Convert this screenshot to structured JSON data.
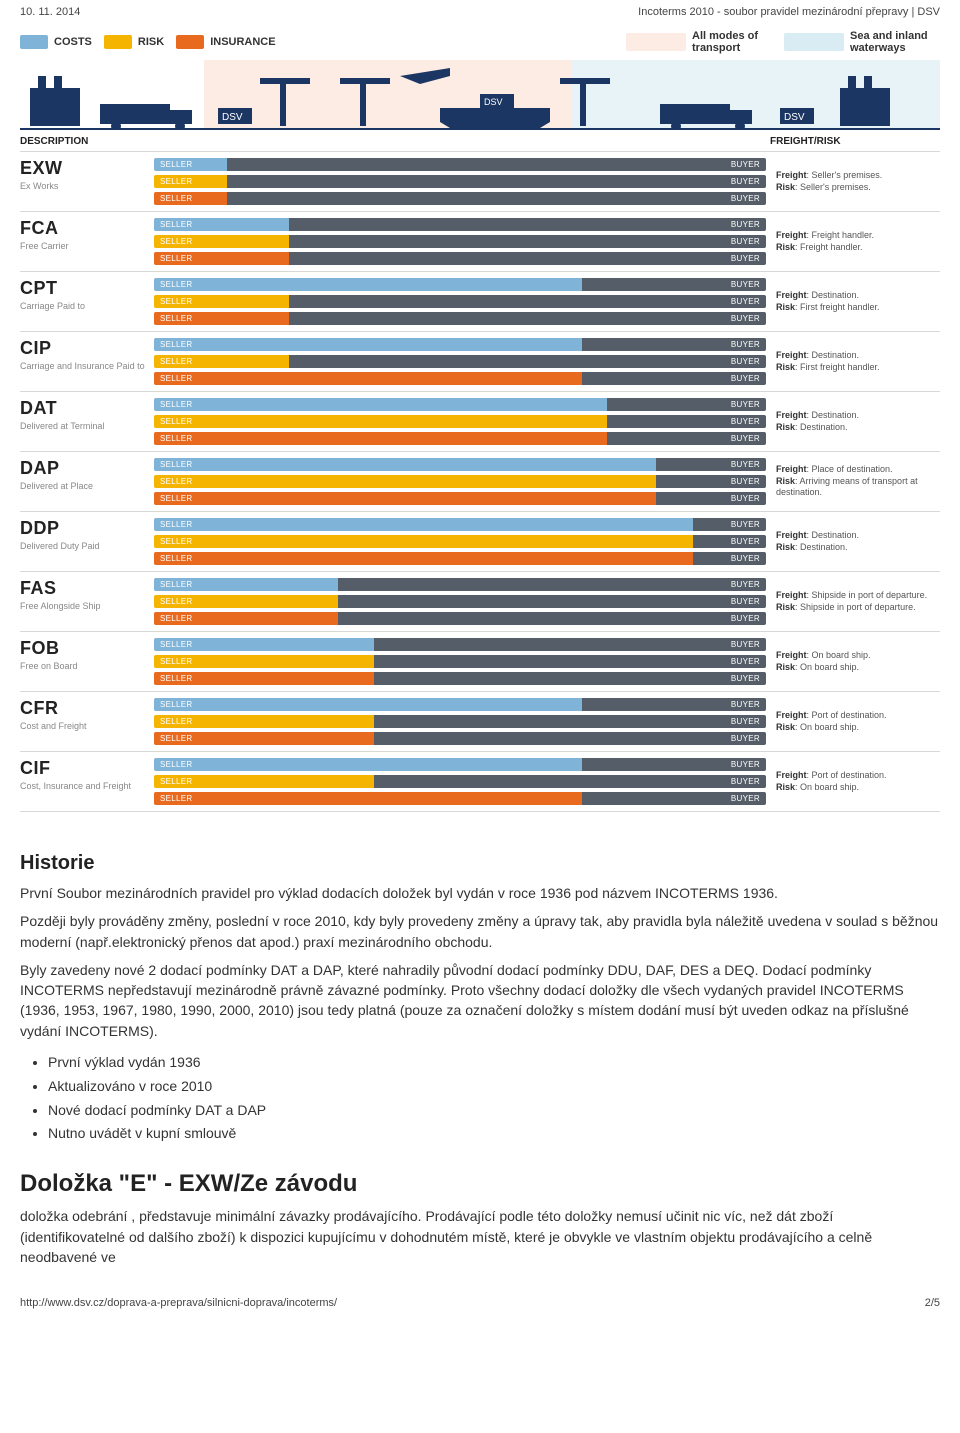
{
  "header": {
    "date": "10. 11. 2014",
    "title": "Incoterms 2010 - soubor pravidel mezinárodní přepravy | DSV"
  },
  "legend": {
    "costs": {
      "label": "COSTS",
      "color": "#7fb4d8"
    },
    "risk": {
      "label": "RISK",
      "color": "#f5b400"
    },
    "insurance": {
      "label": "INSURANCE",
      "color": "#e86a1f"
    },
    "all_modes": {
      "label": "All modes of transport",
      "color": "#fdece3"
    },
    "sea": {
      "label": "Sea and inland waterways",
      "color": "#d9ecf4"
    }
  },
  "table": {
    "head_desc": "DESCRIPTION",
    "head_freight": "FREIGHT/RISK",
    "seller": "SELLER",
    "buyer": "BUYER",
    "colors": {
      "cost_seller": "#7fb4d8",
      "risk_seller": "#f5b400",
      "ins_seller": "#e86a1f",
      "buyer": "#555e68"
    },
    "rows": [
      {
        "code": "EXW",
        "name": "Ex Works",
        "cost": 12,
        "risk": 12,
        "ins": 12,
        "fr": [
          [
            "Freight",
            "Seller's premises."
          ],
          [
            "Risk",
            "Seller's premises."
          ]
        ]
      },
      {
        "code": "FCA",
        "name": "Free Carrier",
        "cost": 22,
        "risk": 22,
        "ins": 22,
        "fr": [
          [
            "Freight",
            "Freight handler."
          ],
          [
            "Risk",
            "Freight handler."
          ]
        ]
      },
      {
        "code": "CPT",
        "name": "Carriage Paid to",
        "cost": 70,
        "risk": 22,
        "ins": 22,
        "fr": [
          [
            "Freight",
            "Destination."
          ],
          [
            "Risk",
            "First freight handler."
          ]
        ]
      },
      {
        "code": "CIP",
        "name": "Carriage and Insurance Paid to",
        "cost": 70,
        "risk": 22,
        "ins": 70,
        "fr": [
          [
            "Freight",
            "Destination."
          ],
          [
            "Risk",
            "First freight handler."
          ]
        ]
      },
      {
        "code": "DAT",
        "name": "Delivered at Terminal",
        "cost": 74,
        "risk": 74,
        "ins": 74,
        "fr": [
          [
            "Freight",
            "Destination."
          ],
          [
            "Risk",
            "Destination."
          ]
        ]
      },
      {
        "code": "DAP",
        "name": "Delivered at Place",
        "cost": 82,
        "risk": 82,
        "ins": 82,
        "fr": [
          [
            "Freight",
            "Place of destination."
          ],
          [
            "Risk",
            "Arriving means of transport at destination."
          ]
        ]
      },
      {
        "code": "DDP",
        "name": "Delivered Duty Paid",
        "cost": 88,
        "risk": 88,
        "ins": 88,
        "fr": [
          [
            "Freight",
            "Destination."
          ],
          [
            "Risk",
            "Destination."
          ]
        ]
      },
      {
        "code": "FAS",
        "name": "Free Alongside Ship",
        "cost": 30,
        "risk": 30,
        "ins": 30,
        "fr": [
          [
            "Freight",
            "Shipside in port of departure."
          ],
          [
            "Risk",
            "Shipside in port of departure."
          ]
        ]
      },
      {
        "code": "FOB",
        "name": "Free on Board",
        "cost": 36,
        "risk": 36,
        "ins": 36,
        "fr": [
          [
            "Freight",
            "On board ship."
          ],
          [
            "Risk",
            "On board ship."
          ]
        ]
      },
      {
        "code": "CFR",
        "name": "Cost and Freight",
        "cost": 70,
        "risk": 36,
        "ins": 36,
        "fr": [
          [
            "Freight",
            "Port of destination."
          ],
          [
            "Risk",
            "On board ship."
          ]
        ]
      },
      {
        "code": "CIF",
        "name": "Cost, Insurance and Freight",
        "cost": 70,
        "risk": 36,
        "ins": 70,
        "fr": [
          [
            "Freight",
            "Port of destination."
          ],
          [
            "Risk",
            "On board ship."
          ]
        ]
      }
    ]
  },
  "article": {
    "h_historie": "Historie",
    "p1": "První Soubor mezinárodních pravidel pro výklad dodacích doložek byl vydán v roce 1936 pod názvem INCOTERMS 1936.",
    "p2": "Později byly prováděny změny, poslední v roce 2010, kdy byly provedeny změny a úpravy tak, aby pravidla byla náležitě uvedena v soulad s běžnou moderní (např.elektronický přenos dat apod.) praxí mezinárodního obchodu.",
    "p3": "Byly zavedeny nové 2 dodací podmínky DAT a DAP, které nahradily původní dodací podmínky DDU, DAF, DES a DEQ. Dodací podmínky INCOTERMS nepředstavují mezinárodně právně závazné podmínky. Proto všechny dodací doložky dle všech vydaných pravidel INCOTERMS (1936, 1953, 1967, 1980, 1990, 2000, 2010) jsou tedy platná (pouze za označení doložky s místem dodání musí být uveden odkaz na příslušné vydání INCOTERMS).",
    "bullets": [
      "První výklad vydán 1936",
      "Aktualizováno v roce 2010",
      "Nové dodací podmínky DAT a DAP",
      "Nutno uvádět v kupní smlouvě"
    ],
    "h_dolozka": "Doložka \"E\" - EXW/Ze závodu",
    "p4": "doložka odebrání , představuje minimální závazky prodávajícího. Prodávající podle této doložky nemusí učinit nic víc, než dát zboží (identifikovatelné od dalšího zboží) k dispozici kupujícímu v dohodnutém místě, které je obvykle ve vlastním objektu prodávajícího a celně neodbavené ve"
  },
  "footer": {
    "url": "http://www.dsv.cz/doprava-a-preprava/silnicni-doprava/incoterms/",
    "page": "2/5"
  }
}
